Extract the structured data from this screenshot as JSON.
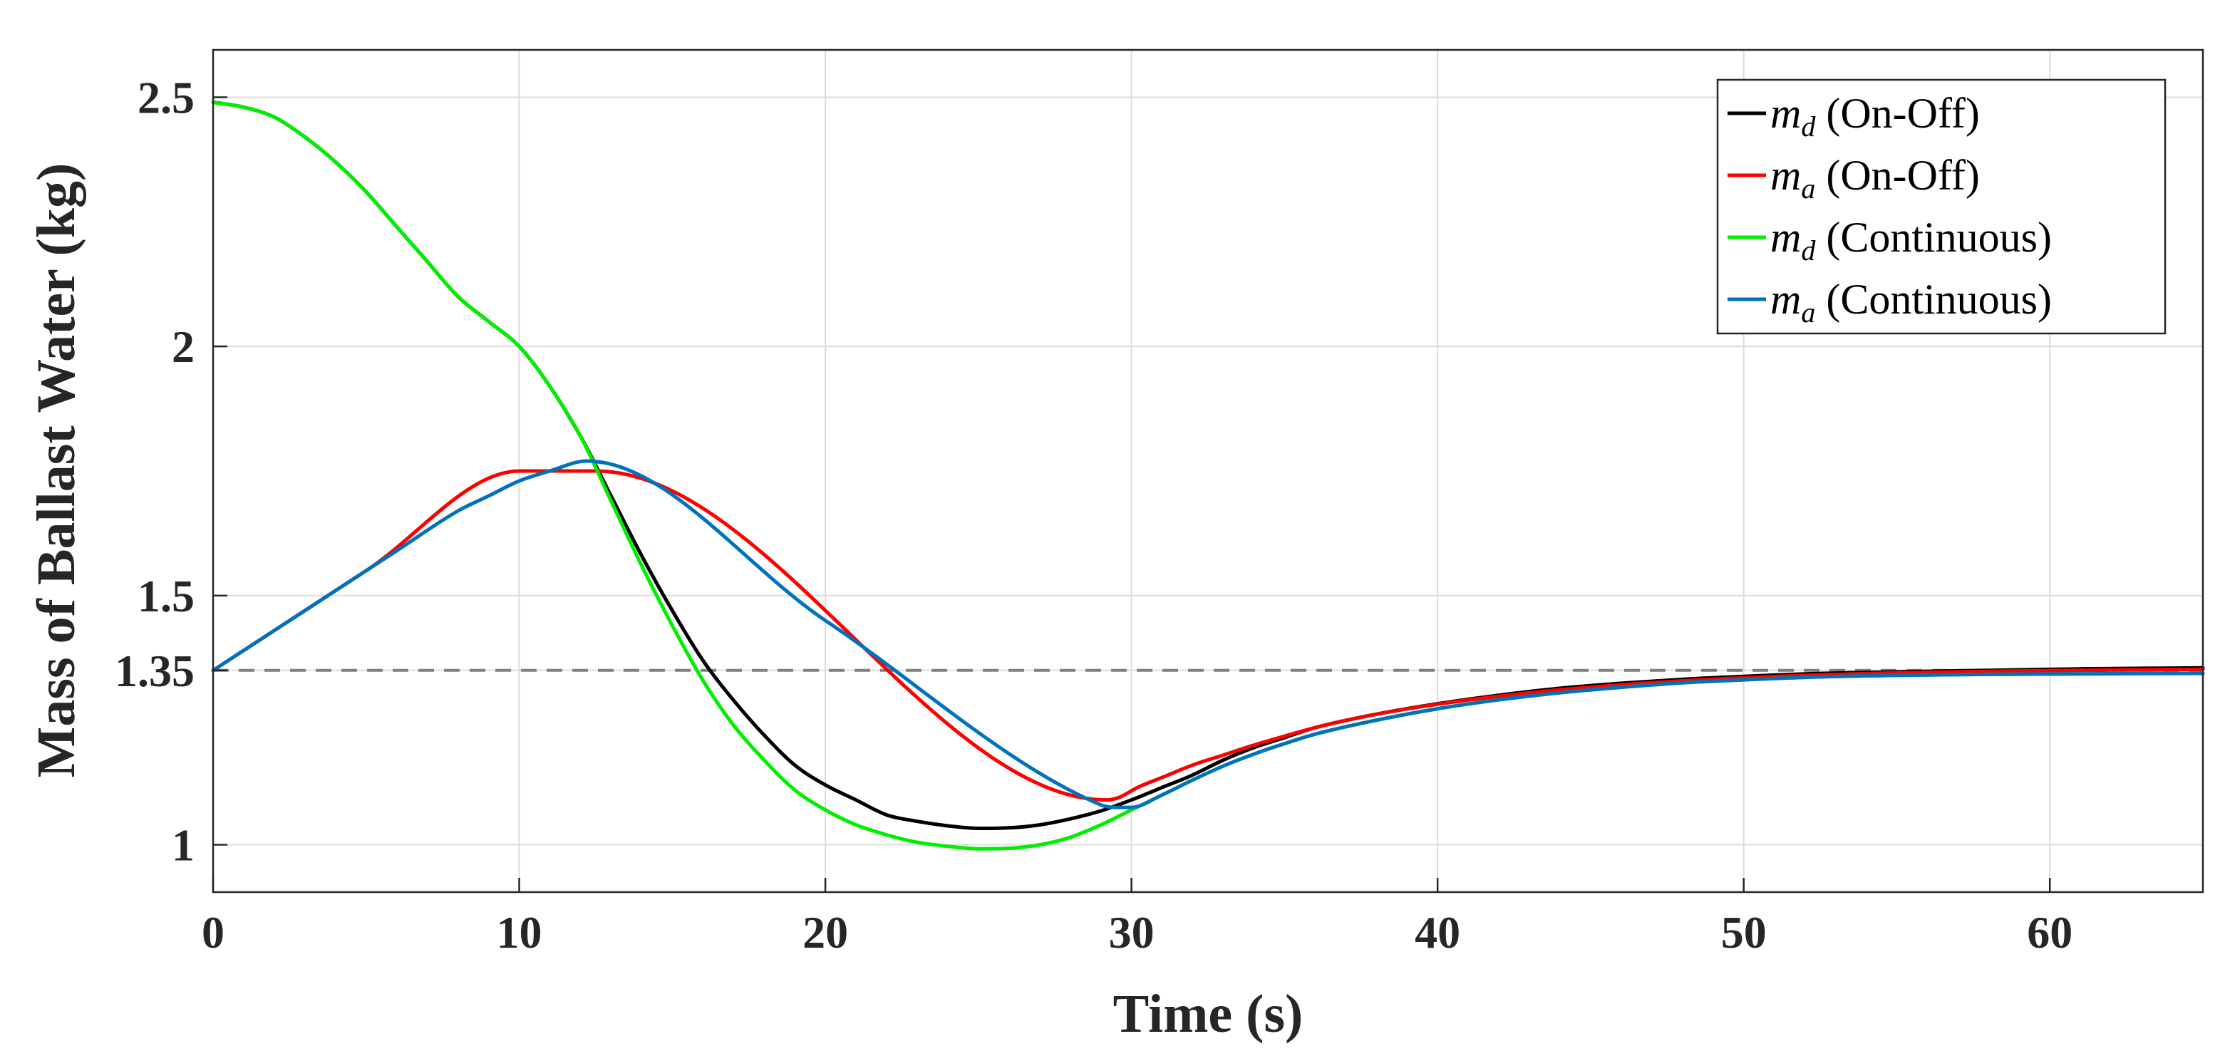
{
  "chart_data": {
    "type": "line",
    "xlabel": "Time (s)",
    "ylabel": "Mass of Ballast Water (kg)",
    "xlim": [
      0,
      65
    ],
    "ylim": [
      0.905,
      2.595
    ],
    "xticks": [
      0,
      10,
      20,
      30,
      40,
      50,
      60
    ],
    "yticks": [
      1,
      1.35,
      1.5,
      2,
      2.5
    ],
    "ytick_labels": [
      "1",
      "1.35",
      "1.5",
      "2",
      "2.5"
    ],
    "grid": true,
    "legend_position": "top-right",
    "reference_line": {
      "y": 1.35,
      "style": "dashed",
      "color": "#808080"
    },
    "series": [
      {
        "name": "m_d (On-Off)",
        "legend_symbol": "m",
        "legend_sub": "d",
        "legend_suffix": " (On-Off)",
        "color": "#000000",
        "x": [
          0,
          1,
          2,
          3,
          4,
          5,
          6,
          7,
          8,
          9,
          10,
          11,
          12,
          13,
          14,
          15,
          16,
          17,
          18,
          19,
          20,
          21,
          22,
          23,
          24,
          25,
          26,
          27,
          28,
          29,
          30,
          31,
          32,
          33,
          34,
          35,
          36,
          38,
          40,
          42,
          44,
          46,
          48,
          50,
          52,
          55,
          58,
          61,
          65
        ],
        "y": [
          2.49,
          2.48,
          2.46,
          2.42,
          2.37,
          2.31,
          2.24,
          2.17,
          2.1,
          2.05,
          2.0,
          1.92,
          1.82,
          1.7,
          1.58,
          1.47,
          1.37,
          1.29,
          1.22,
          1.16,
          1.12,
          1.09,
          1.06,
          1.047,
          1.038,
          1.033,
          1.034,
          1.04,
          1.052,
          1.068,
          1.09,
          1.115,
          1.14,
          1.17,
          1.195,
          1.215,
          1.235,
          1.262,
          1.283,
          1.3,
          1.314,
          1.324,
          1.332,
          1.338,
          1.343,
          1.347,
          1.35,
          1.353,
          1.355
        ]
      },
      {
        "name": "m_a (On-Off)",
        "legend_symbol": "m",
        "legend_sub": "a",
        "legend_suffix": " (On-Off)",
        "color": "#ff0000",
        "x": [
          0,
          5,
          10,
          12.5,
          29.2,
          29.6,
          30.2,
          31,
          32,
          33,
          34,
          35,
          36,
          38,
          40,
          42,
          44,
          46,
          48,
          50,
          52,
          55,
          58,
          61,
          65
        ],
        "y": [
          1.35,
          1.55,
          1.75,
          1.75,
          1.09,
          1.095,
          1.115,
          1.135,
          1.16,
          1.18,
          1.2,
          1.218,
          1.235,
          1.262,
          1.282,
          1.298,
          1.311,
          1.321,
          1.329,
          1.335,
          1.34,
          1.345,
          1.348,
          1.35,
          1.352
        ]
      },
      {
        "name": "m_d (Continuous)",
        "legend_symbol": "m",
        "legend_sub": "d",
        "legend_suffix": " (Continuous)",
        "color": "#00ee00",
        "x": [
          0,
          1,
          2,
          3,
          4,
          5,
          6,
          7,
          8,
          9,
          10,
          11,
          12,
          13,
          14,
          15,
          16,
          17,
          18,
          19,
          20,
          21,
          22,
          23,
          24,
          25,
          26,
          27,
          28,
          29,
          30,
          31,
          32,
          33,
          34,
          35,
          36,
          38,
          40,
          42,
          44,
          46,
          48,
          50,
          52,
          55,
          58,
          61,
          65
        ],
        "y": [
          2.49,
          2.48,
          2.46,
          2.42,
          2.37,
          2.31,
          2.24,
          2.17,
          2.1,
          2.05,
          2.0,
          1.92,
          1.82,
          1.69,
          1.56,
          1.44,
          1.33,
          1.24,
          1.17,
          1.11,
          1.07,
          1.04,
          1.02,
          1.005,
          0.997,
          0.992,
          0.993,
          1.0,
          1.015,
          1.04,
          1.07,
          1.1,
          1.13,
          1.158,
          1.182,
          1.203,
          1.222,
          1.25,
          1.273,
          1.291,
          1.305,
          1.316,
          1.325,
          1.331,
          1.336,
          1.34,
          1.342,
          1.343,
          1.344
        ]
      },
      {
        "name": "m_a (Continuous)",
        "legend_symbol": "m",
        "legend_sub": "a",
        "legend_suffix": " (Continuous)",
        "color": "#0072bd",
        "x": [
          0,
          2,
          4,
          6,
          8,
          9,
          10,
          11,
          12.2,
          20,
          29,
          29.5,
          30,
          31,
          32,
          33,
          34,
          35,
          36,
          38,
          40,
          42,
          44,
          46,
          48,
          50,
          52,
          55,
          58,
          61,
          65
        ],
        "y": [
          1.35,
          1.43,
          1.51,
          1.59,
          1.67,
          1.7,
          1.73,
          1.75,
          1.77,
          1.45,
          1.08,
          1.075,
          1.075,
          1.1,
          1.13,
          1.158,
          1.182,
          1.203,
          1.222,
          1.25,
          1.273,
          1.291,
          1.305,
          1.316,
          1.325,
          1.331,
          1.336,
          1.34,
          1.342,
          1.343,
          1.344
        ]
      }
    ]
  }
}
